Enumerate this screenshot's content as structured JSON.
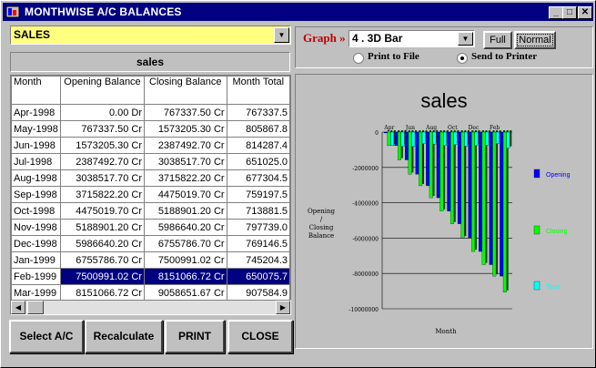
{
  "window": {
    "title": "MONTHWISE A/C BALANCES",
    "min": "_",
    "max": "□",
    "close": "✕"
  },
  "account_combo": {
    "value": "SALES"
  },
  "account_label": "sales",
  "table": {
    "columns": [
      "Month",
      "Opening Balance",
      "Closing Balance",
      "Month Total"
    ],
    "rows": [
      [
        "Apr-1998",
        "0.00 Dr",
        "767337.50 Cr",
        "767337.5"
      ],
      [
        "May-1998",
        "767337.50 Cr",
        "1573205.30 Cr",
        "805867.8"
      ],
      [
        "Jun-1998",
        "1573205.30 Cr",
        "2387492.70 Cr",
        "814287.4"
      ],
      [
        "Jul-1998",
        "2387492.70 Cr",
        "3038517.70 Cr",
        "651025.0"
      ],
      [
        "Aug-1998",
        "3038517.70 Cr",
        "3715822.20 Cr",
        "677304.5"
      ],
      [
        "Sep-1998",
        "3715822.20 Cr",
        "4475019.70 Cr",
        "759197.5"
      ],
      [
        "Oct-1998",
        "4475019.70 Cr",
        "5188901.20 Cr",
        "713881.5"
      ],
      [
        "Nov-1998",
        "5188901.20 Cr",
        "5986640.20 Cr",
        "797739.0"
      ],
      [
        "Dec-1998",
        "5986640.20 Cr",
        "6755786.70 Cr",
        "769146.5"
      ],
      [
        "Jan-1999",
        "6755786.70 Cr",
        "7500991.02 Cr",
        "745204.3"
      ],
      [
        "Feb-1999",
        "7500991.02 Cr",
        "8151066.72 Cr",
        "650075.7"
      ],
      [
        "Mar-1999",
        "8151066.72 Cr",
        "9058651.67 Cr",
        "907584.9"
      ]
    ],
    "selected_index": 10
  },
  "buttons": {
    "select": "Select A/C",
    "recalc": "Recalculate",
    "print": "PRINT",
    "close": "CLOSE"
  },
  "graph": {
    "label": "Graph »",
    "type_value": "4 . 3D Bar",
    "full": "Full",
    "normal": "Normal",
    "print_to_file": "Print to File",
    "send_to_printer": "Send to Printer",
    "send_to_printer_selected": true
  },
  "chart_data": {
    "type": "bar",
    "title": "sales",
    "xlabel": "Month",
    "ylabel": "Opening / Closing Balance",
    "ylim": [
      -10000000,
      0
    ],
    "yticks": [
      "0",
      "-2000000",
      "-4000000",
      "-6000000",
      "-8000000",
      "-10000000"
    ],
    "xticks": [
      "Apr",
      "Jun",
      "Aug",
      "Oct",
      "Dec",
      "Feb"
    ],
    "categories": [
      "Apr",
      "May",
      "Jun",
      "Jul",
      "Aug",
      "Sep",
      "Oct",
      "Nov",
      "Dec",
      "Jan",
      "Feb",
      "Mar"
    ],
    "series": [
      {
        "name": "Opening",
        "color": "#0000ff",
        "values": [
          0,
          -767337.5,
          -1573205.3,
          -2387492.7,
          -3038517.7,
          -3715822.2,
          -4475019.7,
          -5188901.2,
          -5986640.2,
          -6755786.7,
          -7500991.02,
          -8151066.72
        ]
      },
      {
        "name": "Closing",
        "color": "#00ff00",
        "values": [
          -767337.5,
          -1573205.3,
          -2387492.7,
          -3038517.7,
          -3715822.2,
          -4475019.7,
          -5188901.2,
          -5986640.2,
          -6755786.7,
          -7500991.02,
          -8151066.72,
          -9058651.67
        ]
      },
      {
        "name": "Total",
        "color": "#00ffff",
        "values": [
          -767337.5,
          -805867.8,
          -814287.4,
          -651025.0,
          -677304.5,
          -759197.5,
          -713881.5,
          -797739.0,
          -769146.5,
          -745204.3,
          -650075.7,
          -907584.9
        ]
      }
    ]
  }
}
